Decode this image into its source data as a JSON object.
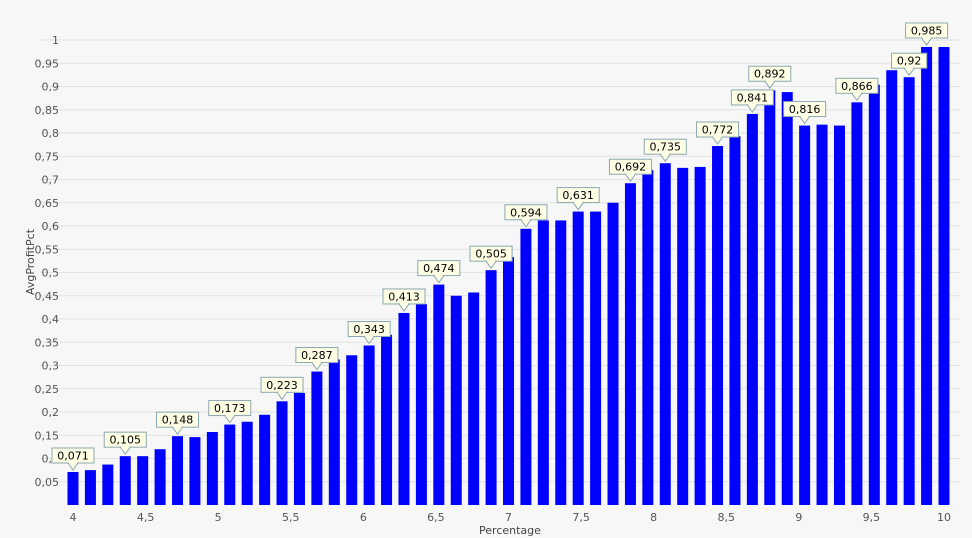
{
  "chart_data": {
    "type": "bar",
    "xlabel": "Percentage",
    "ylabel": "AvgProfitPct",
    "xlim": [
      4,
      10
    ],
    "ylim": [
      0,
      1
    ],
    "grid": true,
    "legend": "none",
    "colors": {
      "bar": "#0000ff",
      "grid": "#e2e2e2",
      "label_bg": "#ffffe6",
      "label_border": "#8aa8b0"
    },
    "x_ticks": [
      {
        "v": 4,
        "label": "4"
      },
      {
        "v": 4.5,
        "label": "4,5"
      },
      {
        "v": 5,
        "label": "5"
      },
      {
        "v": 5.5,
        "label": "5,5"
      },
      {
        "v": 6,
        "label": "6"
      },
      {
        "v": 6.5,
        "label": "6,5"
      },
      {
        "v": 7,
        "label": "7"
      },
      {
        "v": 7.5,
        "label": "7,5"
      },
      {
        "v": 8,
        "label": "8"
      },
      {
        "v": 8.5,
        "label": "8,5"
      },
      {
        "v": 9,
        "label": "9"
      },
      {
        "v": 9.5,
        "label": "9,5"
      },
      {
        "v": 10,
        "label": "10"
      }
    ],
    "y_ticks": [
      {
        "v": 0.05,
        "label": "0,05"
      },
      {
        "v": 0.1,
        "label": "0,1"
      },
      {
        "v": 0.15,
        "label": "0,15"
      },
      {
        "v": 0.2,
        "label": "0,2"
      },
      {
        "v": 0.25,
        "label": "0,25"
      },
      {
        "v": 0.3,
        "label": "0,3"
      },
      {
        "v": 0.35,
        "label": "0,35"
      },
      {
        "v": 0.4,
        "label": "0,4"
      },
      {
        "v": 0.45,
        "label": "0,45"
      },
      {
        "v": 0.5,
        "label": "0,5"
      },
      {
        "v": 0.55,
        "label": "0,55"
      },
      {
        "v": 0.6,
        "label": "0,6"
      },
      {
        "v": 0.65,
        "label": "0,65"
      },
      {
        "v": 0.7,
        "label": "0,7"
      },
      {
        "v": 0.75,
        "label": "0,75"
      },
      {
        "v": 0.8,
        "label": "0,8"
      },
      {
        "v": 0.85,
        "label": "0,85"
      },
      {
        "v": 0.9,
        "label": "0,9"
      },
      {
        "v": 0.95,
        "label": "0,95"
      },
      {
        "v": 1,
        "label": "1"
      }
    ],
    "x": [
      4.0,
      4.12,
      4.24,
      4.36,
      4.48,
      4.6,
      4.72,
      4.84,
      4.96,
      5.08,
      5.2,
      5.32,
      5.44,
      5.56,
      5.68,
      5.8,
      5.92,
      6.04,
      6.16,
      6.28,
      6.4,
      6.52,
      6.64,
      6.76,
      6.88,
      7.0,
      7.12,
      7.24,
      7.36,
      7.48,
      7.6,
      7.72,
      7.84,
      7.96,
      8.08,
      8.2,
      8.32,
      8.44,
      8.56,
      8.68,
      8.8,
      8.92,
      9.04,
      9.16,
      9.28,
      9.4,
      9.52,
      9.64,
      9.76,
      9.88,
      10.0
    ],
    "values": [
      0.071,
      0.075,
      0.087,
      0.105,
      0.105,
      0.12,
      0.148,
      0.146,
      0.157,
      0.173,
      0.179,
      0.194,
      0.223,
      0.241,
      0.287,
      0.313,
      0.322,
      0.343,
      0.366,
      0.413,
      0.432,
      0.474,
      0.45,
      0.457,
      0.505,
      0.533,
      0.594,
      0.612,
      0.612,
      0.631,
      0.631,
      0.65,
      0.692,
      0.72,
      0.735,
      0.725,
      0.727,
      0.772,
      0.793,
      0.841,
      0.892,
      0.888,
      0.816,
      0.818,
      0.816,
      0.866,
      0.904,
      0.935,
      0.92,
      0.985,
      0.985
    ],
    "labels": [
      "0,071",
      "",
      "",
      "0,105",
      "",
      "",
      "0,148",
      "",
      "",
      "0,173",
      "",
      "",
      "0,223",
      "",
      "0,287",
      "",
      "",
      "0,343",
      "",
      "0,413",
      "",
      "0,474",
      "",
      "",
      "0,505",
      "",
      "0,594",
      "",
      "",
      "0,631",
      "",
      "",
      "0,692",
      "",
      "0,735",
      "",
      "",
      "0,772",
      "",
      "0,841",
      "0,892",
      "",
      "0,816",
      "",
      "",
      "0,866",
      "",
      "",
      "0,92",
      "0,985",
      ""
    ]
  }
}
